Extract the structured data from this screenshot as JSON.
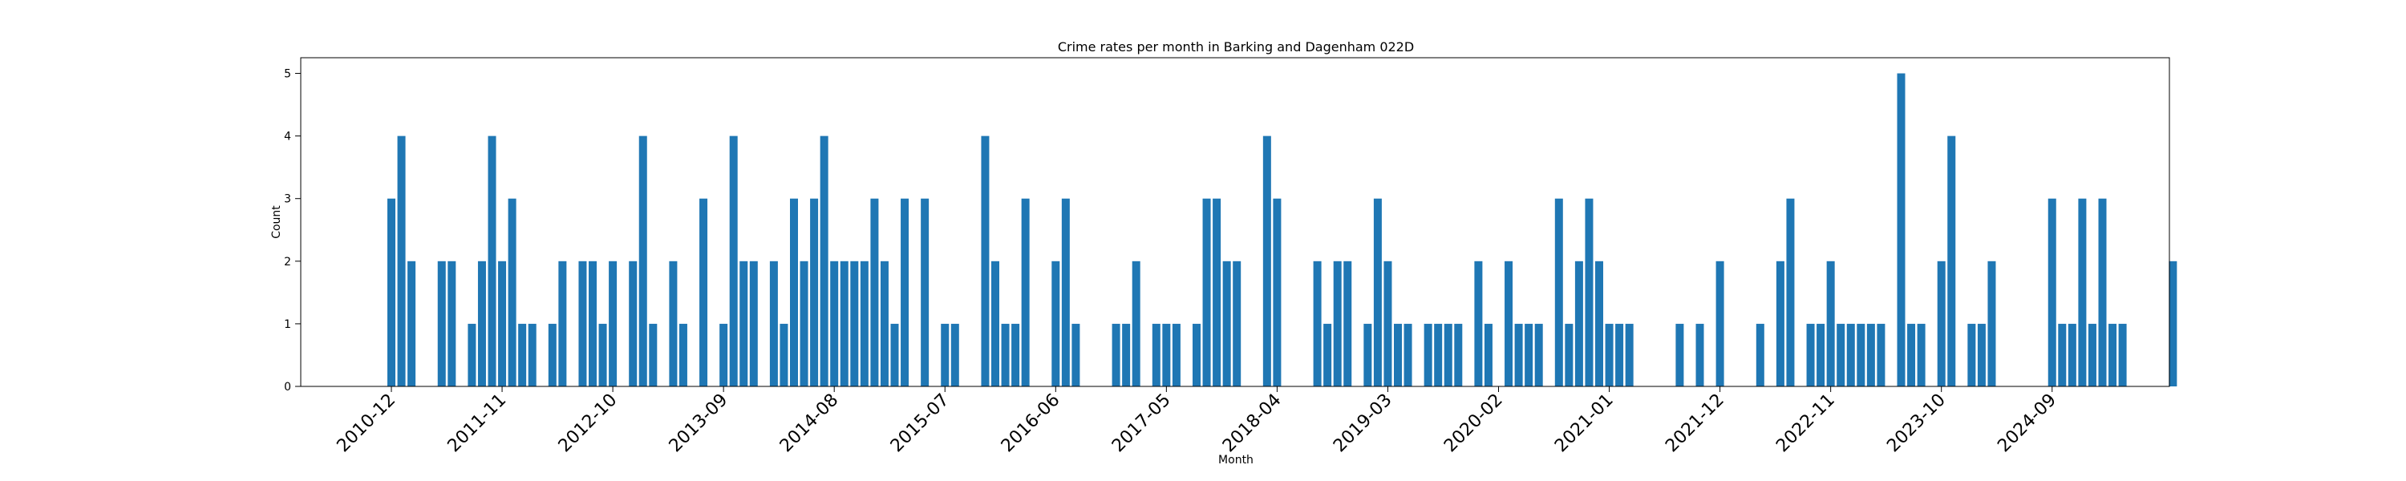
{
  "chart_data": {
    "type": "bar",
    "title": "Crime rates per month in Barking and Dagenham 022D",
    "xlabel": "Month",
    "ylabel": "Count",
    "ylim": [
      0,
      5.25
    ],
    "yticks": [
      0,
      1,
      2,
      3,
      4,
      5
    ],
    "xticks": [
      "2010-12",
      "2011-11",
      "2012-10",
      "2013-09",
      "2014-08",
      "2015-07",
      "2016-06",
      "2017-05",
      "2018-04",
      "2019-03",
      "2020-02",
      "2021-01",
      "2021-12",
      "2022-11",
      "2023-10",
      "2024-09"
    ],
    "bar_color": "#1f77b4",
    "grid": false,
    "start_month": "2010-12",
    "values": [
      3,
      4,
      2,
      0,
      0,
      2,
      2,
      0,
      1,
      2,
      4,
      2,
      3,
      1,
      1,
      0,
      1,
      2,
      0,
      2,
      2,
      1,
      2,
      0,
      2,
      4,
      1,
      0,
      2,
      1,
      0,
      3,
      0,
      1,
      4,
      2,
      2,
      0,
      2,
      1,
      3,
      2,
      3,
      4,
      2,
      2,
      2,
      2,
      3,
      2,
      1,
      3,
      0,
      3,
      0,
      1,
      1,
      0,
      0,
      4,
      2,
      1,
      1,
      3,
      0,
      0,
      2,
      3,
      1,
      0,
      0,
      0,
      1,
      1,
      2,
      0,
      1,
      1,
      1,
      0,
      1,
      3,
      3,
      2,
      2,
      0,
      0,
      4,
      3,
      0,
      0,
      0,
      2,
      1,
      2,
      2,
      0,
      1,
      3,
      2,
      1,
      1,
      0,
      1,
      1,
      1,
      1,
      0,
      2,
      1,
      0,
      2,
      1,
      1,
      1,
      0,
      3,
      1,
      2,
      3,
      2,
      1,
      1,
      1,
      0,
      0,
      0,
      0,
      1,
      0,
      1,
      0,
      2,
      0,
      0,
      0,
      1,
      0,
      2,
      3,
      0,
      1,
      1,
      2,
      1,
      1,
      1,
      1,
      1,
      0,
      5,
      1,
      1,
      0,
      2,
      4,
      0,
      1,
      1,
      2,
      0,
      0,
      0,
      0,
      0,
      3,
      1,
      1,
      3,
      1,
      3,
      1,
      1,
      0,
      0,
      0,
      0,
      2
    ]
  }
}
